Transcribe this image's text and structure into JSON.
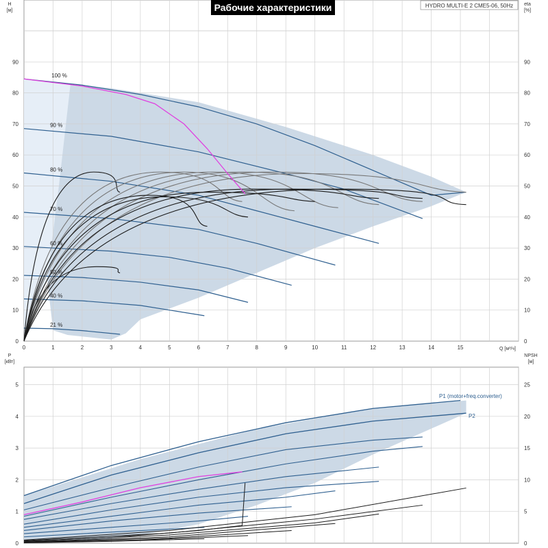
{
  "title": "Рабочие характеристики",
  "pump_label": "HYDRO MULTI-E 2 CME5-06, 50Hz",
  "colors": {
    "envelope_fill": "#ccd9e6",
    "envelope_light": "#e6eef7",
    "curve_blue": "#2e5f8f",
    "curve_dark": "#1a1a1a",
    "curve_grey": "#777777",
    "system_curve": "#e040e0",
    "grid": "#d0d0d0"
  },
  "chart_data": [
    {
      "type": "line",
      "name": "head",
      "xlabel": "Q [м³/ч]",
      "ylabel": "H\n[м]",
      "y2label": "eta\n[%]",
      "xlim": [
        0,
        17
      ],
      "ylim": [
        0,
        100
      ],
      "x_ticks": [
        0,
        1,
        2,
        3,
        4,
        5,
        6,
        7,
        8,
        9,
        10,
        11,
        12,
        13,
        14,
        15
      ],
      "y_ticks": [
        0,
        10,
        20,
        30,
        40,
        50,
        60,
        70,
        80,
        90
      ],
      "y2_ticks": [
        0,
        10,
        20,
        30,
        40,
        50,
        60,
        70,
        80,
        90
      ],
      "speed_labels": [
        {
          "label": "100 %",
          "x": 0.9,
          "y": 84.5
        },
        {
          "label": "90 %",
          "x": 0.85,
          "y": 68.5
        },
        {
          "label": "80 %",
          "x": 0.85,
          "y": 54.2
        },
        {
          "label": "70 %",
          "x": 0.85,
          "y": 41.5
        },
        {
          "label": "60 %",
          "x": 0.85,
          "y": 30.5
        },
        {
          "label": "50 %",
          "x": 0.85,
          "y": 21.2
        },
        {
          "label": "40 %",
          "x": 0.85,
          "y": 13.6
        },
        {
          "label": "21 %",
          "x": 0.85,
          "y": 4.2
        }
      ],
      "speed_curves": [
        {
          "s": 1.0,
          "points": [
            [
              0,
              84.5
            ],
            [
              2,
              82.5
            ],
            [
              4,
              79.5
            ],
            [
              6,
              75.5
            ],
            [
              8,
              70
            ],
            [
              10,
              63
            ],
            [
              12,
              55
            ],
            [
              14,
              47
            ],
            [
              15.2,
              48
            ]
          ]
        },
        {
          "s": 0.9,
          "points": [
            [
              0,
              68.5
            ],
            [
              3,
              66
            ],
            [
              6,
              61
            ],
            [
              9,
              54
            ],
            [
              11,
              49
            ],
            [
              13.7,
              39.5
            ]
          ]
        },
        {
          "s": 0.8,
          "points": [
            [
              0,
              54.2
            ],
            [
              3,
              51.5
            ],
            [
              6,
              47
            ],
            [
              8,
              42
            ],
            [
              10,
              37
            ],
            [
              12.2,
              31.5
            ]
          ]
        },
        {
          "s": 0.7,
          "points": [
            [
              0,
              41.5
            ],
            [
              3,
              39.5
            ],
            [
              6,
              36
            ],
            [
              8,
              31.5
            ],
            [
              10.7,
              24.5
            ]
          ]
        },
        {
          "s": 0.6,
          "points": [
            [
              0,
              30.5
            ],
            [
              3,
              29
            ],
            [
              5,
              27
            ],
            [
              7,
              23.5
            ],
            [
              9.2,
              18
            ]
          ]
        },
        {
          "s": 0.5,
          "points": [
            [
              0,
              21.2
            ],
            [
              2,
              20.5
            ],
            [
              4,
              19
            ],
            [
              6,
              16.5
            ],
            [
              7.7,
              12.5
            ]
          ]
        },
        {
          "s": 0.4,
          "points": [
            [
              0,
              13.6
            ],
            [
              2,
              13
            ],
            [
              4,
              11.5
            ],
            [
              6.2,
              8.2
            ]
          ]
        },
        {
          "s": 0.21,
          "points": [
            [
              0,
              4.2
            ],
            [
              1,
              4
            ],
            [
              2,
              3.4
            ],
            [
              3.3,
              2.2
            ]
          ]
        }
      ],
      "envelope": [
        [
          0,
          84.5
        ],
        [
          3,
          81.5
        ],
        [
          6,
          77
        ],
        [
          9,
          69
        ],
        [
          12,
          60
        ],
        [
          14,
          53
        ],
        [
          15.2,
          48
        ],
        [
          14,
          43.5
        ],
        [
          12,
          37
        ],
        [
          10,
          30
        ],
        [
          8,
          22
        ],
        [
          6,
          14
        ],
        [
          4,
          7
        ],
        [
          3.5,
          2.5
        ],
        [
          3,
          0.5
        ],
        [
          1.5,
          2
        ],
        [
          1,
          3.5
        ]
      ],
      "light_region": [
        [
          0,
          84.5
        ],
        [
          1.6,
          83
        ],
        [
          1.2,
          50
        ],
        [
          0.8,
          20
        ],
        [
          0,
          2
        ]
      ],
      "system_curve": [
        [
          0,
          84.5
        ],
        [
          2,
          82.2
        ],
        [
          3.5,
          79.5
        ],
        [
          4.5,
          76.5
        ],
        [
          5.5,
          70
        ],
        [
          6.3,
          62
        ],
        [
          7,
          54
        ],
        [
          7.6,
          47.5
        ]
      ],
      "black_curves": [
        {
          "peak_q": 2.4,
          "peak_h": 54.5,
          "end_q": 3.3,
          "end_h": 48
        },
        {
          "peak_q": 2.5,
          "peak_h": 24,
          "end_q": 3.3,
          "end_h": 22
        },
        {
          "peak_q": 4.7,
          "peak_h": 54.5,
          "end_q": 7.5,
          "end_h": 45
        },
        {
          "peak_q": 5.5,
          "peak_h": 54.5,
          "end_q": 9.3,
          "end_h": 42
        },
        {
          "peak_q": 6.5,
          "peak_h": 54.5,
          "end_q": 10.8,
          "end_h": 43
        },
        {
          "peak_q": 7.5,
          "peak_h": 54.5,
          "end_q": 12.2,
          "end_h": 44
        },
        {
          "peak_q": 8.5,
          "peak_h": 54.5,
          "end_q": 13.7,
          "end_h": 45
        },
        {
          "peak_q": 9.5,
          "peak_h": 54,
          "end_q": 15.2,
          "end_h": 48
        },
        {
          "peak_q": 4.3,
          "peak_h": 47,
          "end_q": 6.3,
          "end_h": 37
        },
        {
          "peak_q": 4.8,
          "peak_h": 46.5,
          "end_q": 7.7,
          "end_h": 40
        },
        {
          "peak_q": 6.3,
          "peak_h": 48,
          "end_q": 10,
          "end_h": 45
        },
        {
          "peak_q": 7.8,
          "peak_h": 49,
          "end_q": 12.2,
          "end_h": 46
        },
        {
          "peak_q": 9.2,
          "peak_h": 49,
          "end_q": 13.7,
          "end_h": 46
        },
        {
          "peak_q": 10.7,
          "peak_h": 49,
          "end_q": 15.2,
          "end_h": 44
        }
      ]
    },
    {
      "type": "line",
      "name": "power",
      "xlabel": "Q [м³/ч]",
      "ylabel": "P\n[кВт]",
      "y2label": "NPSH\n[м]",
      "xlim": [
        0,
        17
      ],
      "ylim": [
        0,
        5.8
      ],
      "y_ticks": [
        0,
        1,
        2,
        3,
        4,
        5
      ],
      "y2_ticks": [
        0,
        5,
        10,
        15,
        20,
        25
      ],
      "y2_max": 29,
      "series": [
        {
          "name": "P1 (motor+freq.converter)",
          "points": [
            [
              0,
              1.5
            ],
            [
              3,
              2.45
            ],
            [
              6,
              3.2
            ],
            [
              9,
              3.8
            ],
            [
              12,
              4.25
            ],
            [
              15,
              4.5
            ]
          ]
        },
        {
          "name": "P2",
          "points": [
            [
              0,
              1.25
            ],
            [
              3,
              2.15
            ],
            [
              6,
              2.85
            ],
            [
              9,
              3.45
            ],
            [
              12,
              3.85
            ],
            [
              15.2,
              4.1
            ]
          ]
        }
      ],
      "power_curves": [
        {
          "points": [
            [
              0,
              1.05
            ],
            [
              3,
              1.75
            ],
            [
              6,
              2.4
            ],
            [
              9,
              2.95
            ],
            [
              12,
              3.25
            ],
            [
              13.7,
              3.35
            ]
          ]
        },
        {
          "points": [
            [
              0,
              0.85
            ],
            [
              3,
              1.45
            ],
            [
              6,
              2
            ],
            [
              9,
              2.5
            ],
            [
              12,
              2.9
            ],
            [
              13.7,
              3.05
            ]
          ]
        },
        {
          "points": [
            [
              0,
              0.75
            ],
            [
              3,
              1.25
            ],
            [
              6,
              1.7
            ],
            [
              9,
              2.1
            ],
            [
              12.2,
              2.4
            ]
          ]
        },
        {
          "points": [
            [
              0,
              0.6
            ],
            [
              3,
              1.05
            ],
            [
              6,
              1.45
            ],
            [
              9,
              1.75
            ],
            [
              12.2,
              1.95
            ]
          ]
        },
        {
          "points": [
            [
              0,
              0.5
            ],
            [
              3,
              0.85
            ],
            [
              6,
              1.2
            ],
            [
              9,
              1.45
            ],
            [
              10.7,
              1.65
            ]
          ]
        },
        {
          "points": [
            [
              0,
              0.4
            ],
            [
              3,
              0.7
            ],
            [
              6,
              0.95
            ],
            [
              9.2,
              1.15
            ]
          ]
        },
        {
          "points": [
            [
              0,
              0.3
            ],
            [
              3,
              0.5
            ],
            [
              6,
              0.7
            ],
            [
              7.7,
              0.85
            ]
          ]
        },
        {
          "points": [
            [
              0,
              0.2
            ],
            [
              3,
              0.35
            ],
            [
              6.2,
              0.5
            ]
          ]
        }
      ],
      "system_curve": [
        [
          0,
          0.9
        ],
        [
          2,
          1.3
        ],
        [
          4,
          1.75
        ],
        [
          6,
          2.1
        ],
        [
          7.5,
          2.25
        ]
      ],
      "npsh_curves": [
        {
          "points": [
            [
              0,
              0.3
            ],
            [
              3,
              0.9
            ],
            [
              6,
              2
            ],
            [
              7.5,
              2.8
            ],
            [
              7.6,
              9.5
            ]
          ]
        },
        {
          "points": [
            [
              0,
              0.5
            ],
            [
              5,
              2
            ],
            [
              10,
              4.5
            ],
            [
              15.2,
              8.7
            ]
          ]
        },
        {
          "points": [
            [
              0,
              0.4
            ],
            [
              5,
              1.6
            ],
            [
              10,
              3.8
            ],
            [
              13.7,
              6
            ]
          ]
        },
        {
          "points": [
            [
              0,
              0.3
            ],
            [
              5,
              1.3
            ],
            [
              10,
              3.2
            ],
            [
              12.2,
              4.6
            ]
          ]
        },
        {
          "points": [
            [
              0,
              0.2
            ],
            [
              5,
              1.0
            ],
            [
              10.7,
              3.1
            ]
          ]
        },
        {
          "points": [
            [
              0,
              0.15
            ],
            [
              5,
              0.8
            ],
            [
              9.2,
              2
            ]
          ]
        },
        {
          "points": [
            [
              0,
              0.1
            ],
            [
              4,
              0.5
            ],
            [
              7.7,
              1.2
            ]
          ]
        },
        {
          "points": [
            [
              0,
              0.05
            ],
            [
              3,
              0.3
            ],
            [
              6.2,
              0.7
            ]
          ]
        }
      ],
      "envelope": [
        [
          0,
          1.5
        ],
        [
          4,
          2.65
        ],
        [
          8,
          3.6
        ],
        [
          12,
          4.25
        ],
        [
          15.2,
          4.5
        ],
        [
          15.2,
          4.1
        ],
        [
          12,
          2.8
        ],
        [
          10,
          1.9
        ],
        [
          8,
          1.2
        ],
        [
          6,
          0.6
        ],
        [
          4,
          0.25
        ],
        [
          2,
          0.05
        ],
        [
          0,
          0
        ]
      ]
    }
  ]
}
